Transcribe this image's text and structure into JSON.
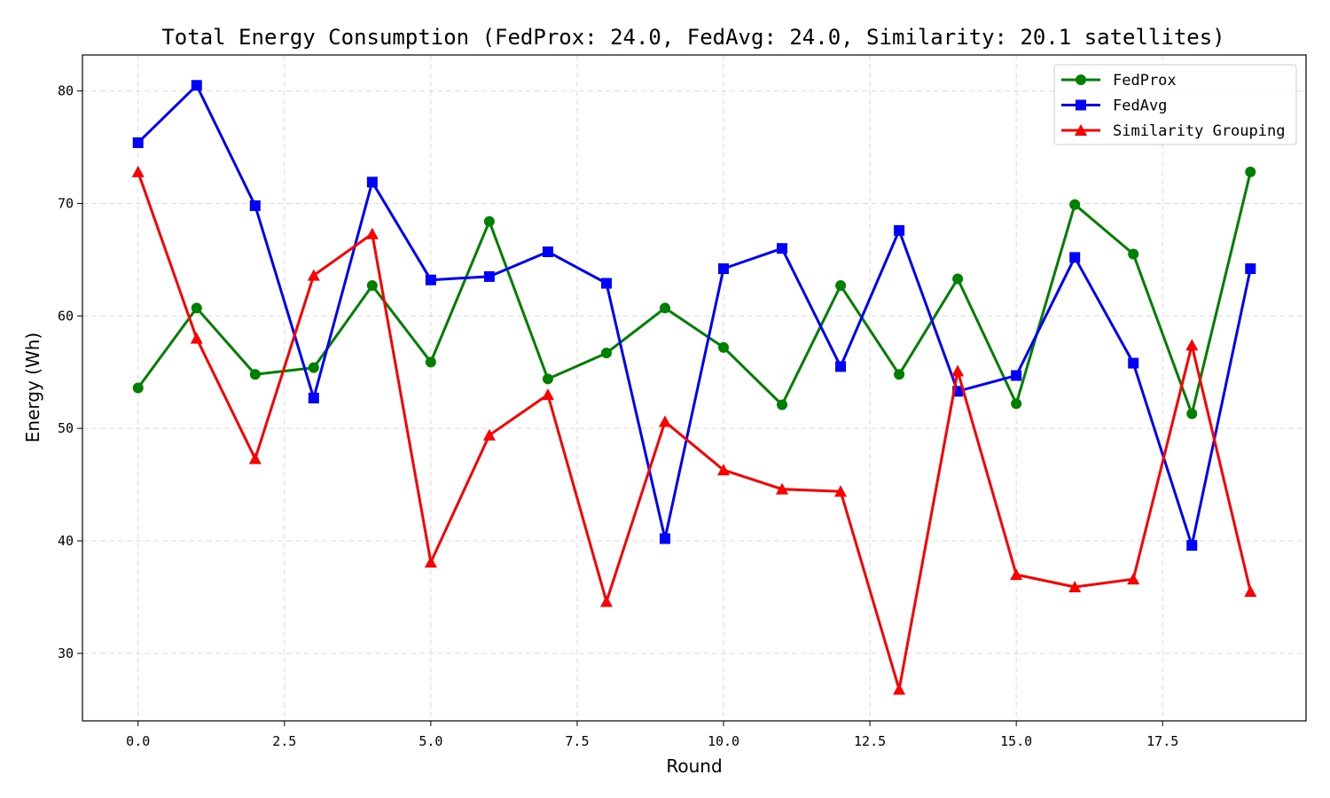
{
  "chart_data": {
    "type": "line",
    "title": "Total Energy Consumption (FedProx: 24.0, FedAvg: 24.0, Similarity: 20.1 satellites)",
    "xlabel": "Round",
    "ylabel": "Energy (Wh)",
    "xlim": [
      -0.95,
      19.95
    ],
    "ylim": [
      24.0,
      83.2
    ],
    "xticks": [
      0.0,
      2.5,
      5.0,
      7.5,
      10.0,
      12.5,
      15.0,
      17.5
    ],
    "xtick_labels": [
      "0.0",
      "2.5",
      "5.0",
      "7.5",
      "10.0",
      "12.5",
      "15.0",
      "17.5"
    ],
    "yticks": [
      30,
      40,
      50,
      60,
      70,
      80
    ],
    "ytick_labels": [
      "30",
      "40",
      "50",
      "60",
      "70",
      "80"
    ],
    "grid": true,
    "legend_position": "top-right",
    "x": [
      0,
      1,
      2,
      3,
      4,
      5,
      6,
      7,
      8,
      9,
      10,
      11,
      12,
      13,
      14,
      15,
      16,
      17,
      18,
      19
    ],
    "series": [
      {
        "name": "FedProx",
        "color": "#008000",
        "marker": "circle",
        "values": [
          53.6,
          60.7,
          54.8,
          55.4,
          62.7,
          55.9,
          68.4,
          54.4,
          56.7,
          60.7,
          57.2,
          52.1,
          62.7,
          54.8,
          63.3,
          52.2,
          69.9,
          65.5,
          51.3,
          72.8
        ]
      },
      {
        "name": "FedAvg",
        "color": "#0000ff",
        "marker": "square",
        "values": [
          75.4,
          80.5,
          69.8,
          52.7,
          71.9,
          63.2,
          63.5,
          65.7,
          62.9,
          40.2,
          64.2,
          66.0,
          55.5,
          67.6,
          53.3,
          54.7,
          65.2,
          55.8,
          39.6,
          64.2
        ]
      },
      {
        "name": "Similarity Grouping",
        "color": "#ff0000",
        "marker": "triangle",
        "values": [
          72.8,
          58.0,
          47.3,
          63.6,
          67.3,
          38.1,
          49.4,
          53.0,
          34.6,
          50.6,
          46.3,
          44.6,
          44.4,
          26.8,
          55.1,
          37.0,
          35.9,
          36.6,
          57.4,
          35.5
        ]
      }
    ]
  }
}
